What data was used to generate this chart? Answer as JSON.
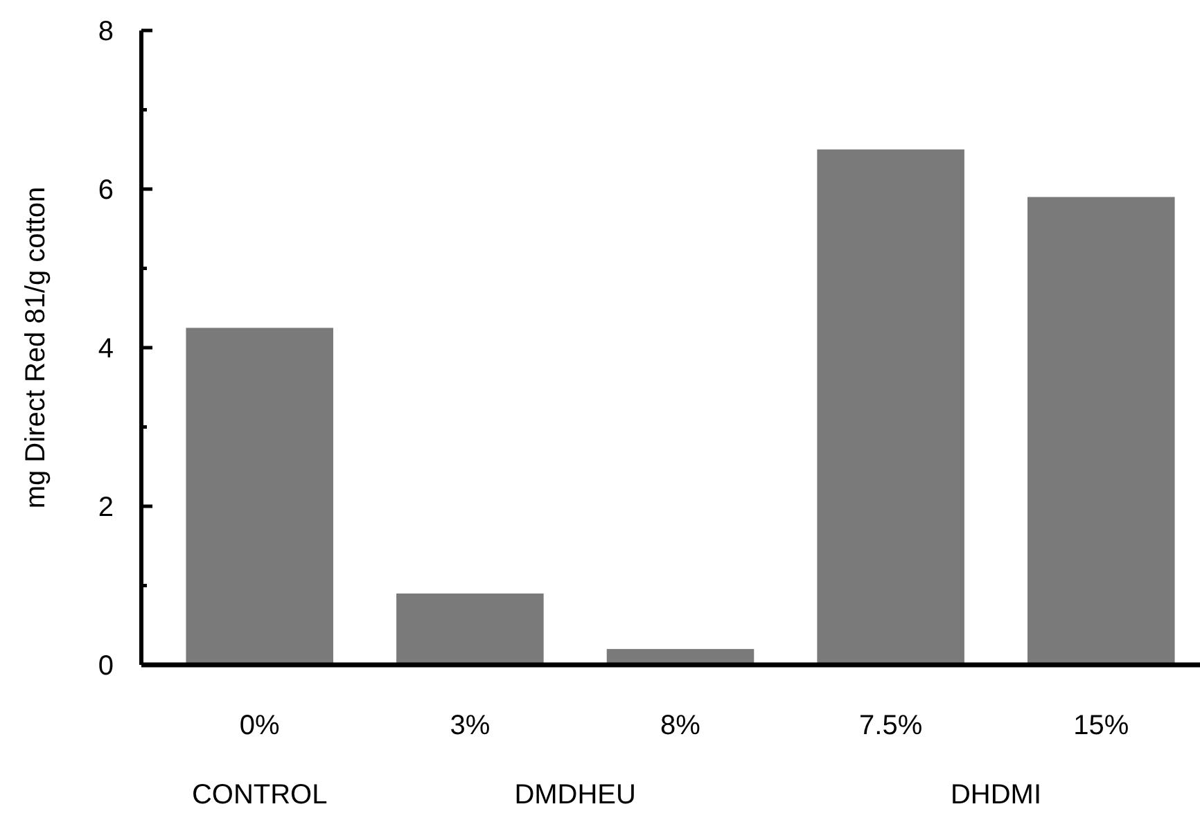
{
  "chart_data": {
    "type": "bar",
    "ylabel": "mg Direct Red 81/g cotton",
    "categories": [
      "0%",
      "3%",
      "8%",
      "7.5%",
      "15%"
    ],
    "values": [
      4.25,
      0.9,
      0.2,
      6.5,
      5.9
    ],
    "color": "#7a7a7a",
    "ylim": [
      0,
      8
    ],
    "yticks": [
      0,
      {
        "value": 1,
        "label": null
      },
      2,
      {
        "value": 3,
        "label": null
      },
      4,
      {
        "value": 5,
        "label": null
      },
      6,
      {
        "value": 7,
        "label": null
      },
      8
    ],
    "annotations": [
      "CONTROL",
      "DMDHEU",
      "DHDMI"
    ]
  }
}
